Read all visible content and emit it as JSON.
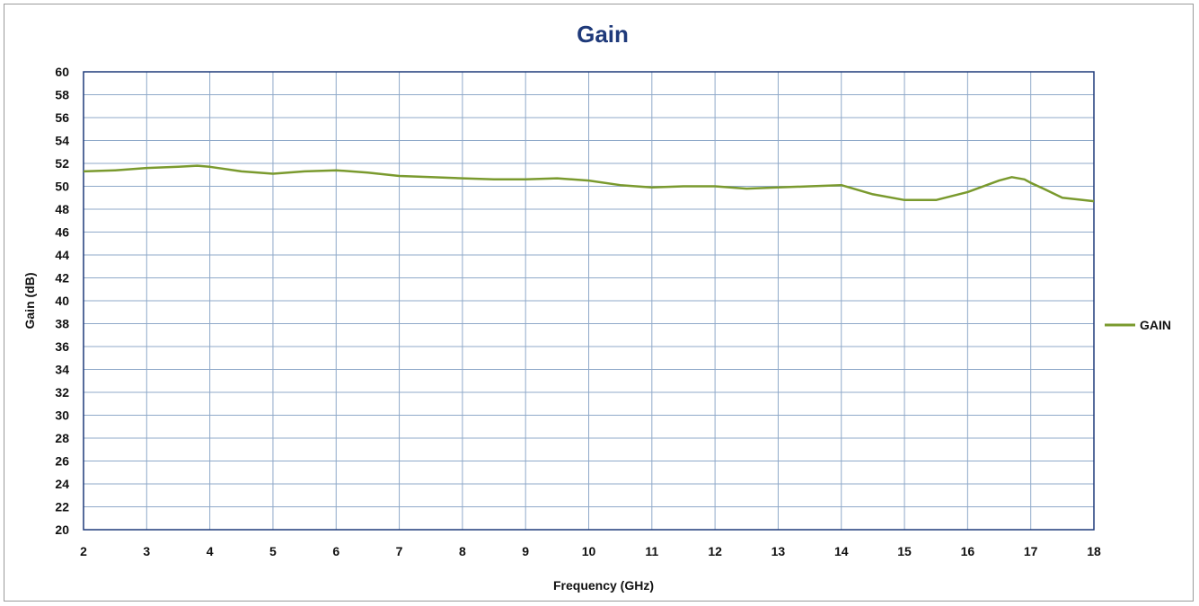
{
  "chart_data": {
    "type": "line",
    "title": "Gain",
    "xlabel": "Frequency (GHz)",
    "ylabel": "Gain (dB)",
    "xlim": [
      2,
      18
    ],
    "ylim": [
      20,
      60
    ],
    "x_ticks": [
      2,
      3,
      4,
      5,
      6,
      7,
      8,
      9,
      10,
      11,
      12,
      13,
      14,
      15,
      16,
      17,
      18
    ],
    "y_ticks": [
      20,
      22,
      24,
      26,
      28,
      30,
      32,
      34,
      36,
      38,
      40,
      42,
      44,
      46,
      48,
      50,
      52,
      54,
      56,
      58,
      60
    ],
    "grid": true,
    "legend_position": "right",
    "series": [
      {
        "name": "GAIN",
        "color": "#7a9a2e",
        "x": [
          2.0,
          2.5,
          3.0,
          3.5,
          3.8,
          4.0,
          4.5,
          5.0,
          5.5,
          6.0,
          6.5,
          7.0,
          7.5,
          8.0,
          8.5,
          9.0,
          9.5,
          10.0,
          10.5,
          11.0,
          11.5,
          12.0,
          12.5,
          13.0,
          13.5,
          14.0,
          14.5,
          15.0,
          15.5,
          16.0,
          16.3,
          16.5,
          16.7,
          16.9,
          17.0,
          17.2,
          17.5,
          18.0
        ],
        "values": [
          51.3,
          51.4,
          51.6,
          51.7,
          51.8,
          51.7,
          51.3,
          51.1,
          51.3,
          51.4,
          51.2,
          50.9,
          50.8,
          50.7,
          50.6,
          50.6,
          50.7,
          50.5,
          50.1,
          49.9,
          50.0,
          50.0,
          49.8,
          49.9,
          50.0,
          50.1,
          49.3,
          48.8,
          48.8,
          49.5,
          50.1,
          50.5,
          50.8,
          50.6,
          50.3,
          49.8,
          49.0,
          48.7
        ]
      }
    ]
  }
}
